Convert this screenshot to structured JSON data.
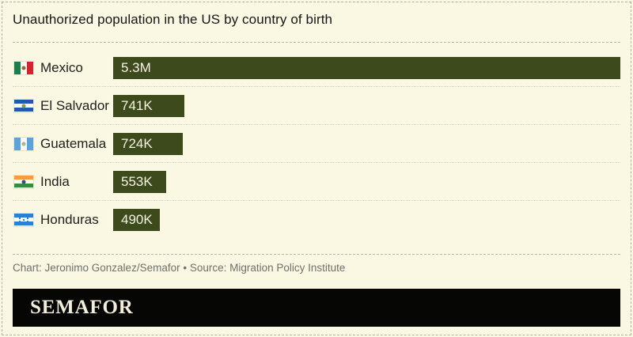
{
  "header": {
    "title": "Unauthorized population in the US by country of birth"
  },
  "chart_data": {
    "type": "bar",
    "orientation": "horizontal",
    "title": "Unauthorized population in the US by country of birth",
    "categories": [
      "Mexico",
      "El Salvador",
      "Guatemala",
      "India",
      "Honduras"
    ],
    "values": [
      5300000,
      741000,
      724000,
      553000,
      490000
    ],
    "value_labels": [
      "5.3M",
      "741K",
      "724K",
      "553K",
      "490K"
    ],
    "xlim": [
      0,
      5300000
    ],
    "grid": false,
    "legend": "none",
    "rows": [
      {
        "country": "Mexico",
        "value": 5300000,
        "label": "5.3M",
        "flag": {
          "name": "mexico-flag",
          "dir": "v",
          "stripes": [
            "#1a7f4b",
            "#fbf9f0",
            "#d32330"
          ],
          "emblem": {
            "type": "dot",
            "color": "#8a6d3b"
          }
        }
      },
      {
        "country": "El Salvador",
        "value": 741000,
        "label": "741K",
        "flag": {
          "name": "el-salvador-flag",
          "dir": "h",
          "stripes": [
            "#2457b0",
            "#fbf9f0",
            "#2457b0"
          ],
          "emblem": {
            "type": "dot",
            "color": "#8a9a4a"
          }
        }
      },
      {
        "country": "Guatemala",
        "value": 724000,
        "label": "724K",
        "flag": {
          "name": "guatemala-flag",
          "dir": "v",
          "stripes": [
            "#5ba3d9",
            "#fbf9f0",
            "#5ba3d9"
          ],
          "emblem": {
            "type": "dot",
            "color": "#a3b59a"
          }
        }
      },
      {
        "country": "India",
        "value": 553000,
        "label": "553K",
        "flag": {
          "name": "india-flag",
          "dir": "h",
          "stripes": [
            "#f59b42",
            "#fbf9f0",
            "#368c3c"
          ],
          "emblem": {
            "type": "dot",
            "color": "#3b4a9e"
          }
        }
      },
      {
        "country": "Honduras",
        "value": 490000,
        "label": "490K",
        "flag": {
          "name": "honduras-flag",
          "dir": "h",
          "stripes": [
            "#2b7fd4",
            "#fbf9f0",
            "#2b7fd4"
          ],
          "emblem": {
            "type": "stars",
            "color": "#2b7fd4"
          }
        }
      }
    ]
  },
  "footer": {
    "credit": "Chart: Jeronimo Gonzalez/Semafor • Source: Migration Policy Institute",
    "brand": "SEMAFOR"
  },
  "colors": {
    "background": "#faf7e3",
    "outer_border": "#b2b2aa",
    "bar": "#3c4a1c",
    "bar_text": "#f6f3e1",
    "title_text": "#161616",
    "label_text": "#21211d",
    "credit_text": "#70706a",
    "footer_bg": "#060605",
    "brand_text": "#f2eedb",
    "separator_dashed": "#bab7a9",
    "separator_dotted": "#d9d6c1"
  }
}
